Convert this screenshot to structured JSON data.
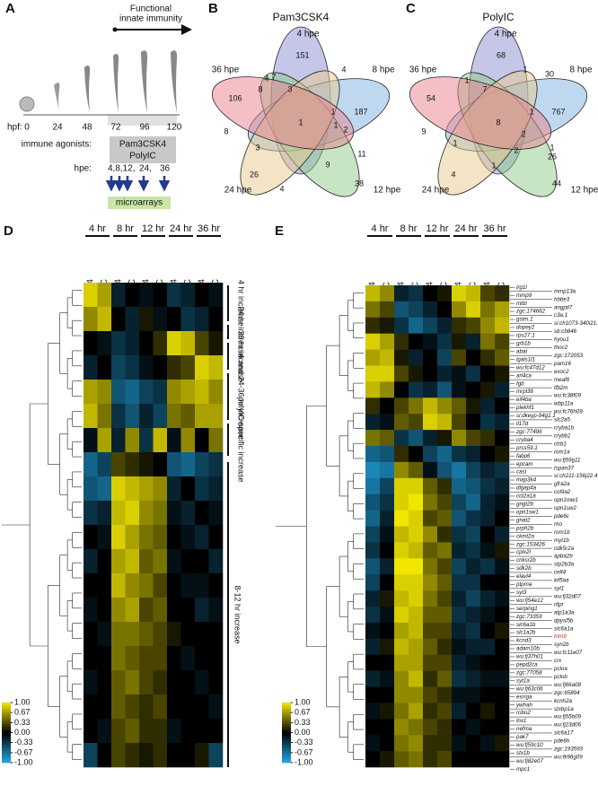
{
  "panel_a": {
    "letter": "A",
    "arrow_label": [
      "Functional",
      "innate immunity"
    ],
    "hpf_label": "hpf:",
    "hpf": [
      0,
      24,
      48,
      72,
      96,
      120
    ],
    "agonists_label": "immune agonists:",
    "agonists": [
      "Pam3CSK4",
      "PolyIC"
    ],
    "hpe_label": "hpe:",
    "hpe": [
      "4,8,12,",
      "24,",
      "36"
    ],
    "assay": "microarrays"
  },
  "panel_b": {
    "letter": "B",
    "title": "Pam3CSK4",
    "sets": [
      "4 hpe",
      "8 hpe",
      "12 hpe",
      "24 hpe",
      "36 hpe"
    ],
    "colors": [
      "#8b8fd2",
      "#7fb2e2",
      "#8fca8c",
      "#eac98e",
      "#e9818e"
    ],
    "counts": [
      151,
      4,
      7,
      4,
      106,
      8,
      3,
      1,
      187,
      1,
      1,
      2,
      8,
      3,
      9,
      11,
      26,
      4,
      38
    ]
  },
  "panel_c": {
    "letter": "C",
    "title": "PolyIC",
    "sets": [
      "4 hpe",
      "8 hpe",
      "12 hpe",
      "24 hpe",
      "36 hpe"
    ],
    "colors": [
      "#8b8fd2",
      "#7fb2e2",
      "#8fca8c",
      "#eac98e",
      "#e9818e"
    ],
    "counts": [
      68,
      1,
      1,
      30,
      54,
      7,
      1,
      767,
      8,
      9,
      1,
      2,
      2,
      1,
      1,
      26,
      4,
      44
    ]
  },
  "panel_d": {
    "letter": "D",
    "times": [
      "4 hr",
      "8 hr",
      "12 hr",
      "24 hr",
      "36 hr"
    ],
    "columns": [
      "Pam3CSK4",
      "PolyIC",
      "Pam3CSK4",
      "PolyIC",
      "Pam3CSK4",
      "PolyIC",
      "Pam3CSK4",
      "PolyIC",
      "Pam3CSK4",
      "PolyIC"
    ],
    "clusters": [
      "4 hr increase",
      "24 hr increase",
      "36 hr increase",
      "4 and 24-36 hr increase",
      "polyIC-specific increase",
      "8-12 hr increase"
    ],
    "scale": [
      {
        "value": -1,
        "label": "-1.00"
      },
      {
        "value": -0.67,
        "label": "-0.67"
      },
      {
        "value": -0.33,
        "label": "-0.33"
      },
      {
        "value": 0,
        "label": "0.00"
      },
      {
        "value": 0.33,
        "label": "0.33"
      },
      {
        "value": 0.67,
        "label": "0.67"
      },
      {
        "value": 1,
        "label": "1.00"
      }
    ],
    "matrix": [
      [
        0.9,
        0.7,
        -0.2,
        0,
        -0.1,
        0,
        -0.3,
        -0.2,
        0,
        -0.1
      ],
      [
        0.6,
        0.8,
        0,
        -0.2,
        0.1,
        -0.1,
        0,
        -0.3,
        -0.2,
        0
      ],
      [
        0,
        -0.1,
        -0.3,
        -0.2,
        0,
        0.2,
        0.9,
        0.8,
        0.3,
        0.1
      ],
      [
        -0.2,
        0,
        -0.4,
        -0.3,
        -0.1,
        0,
        0.2,
        0.3,
        0.9,
        0.8
      ],
      [
        0.7,
        0.6,
        -0.5,
        -0.6,
        -0.4,
        -0.3,
        0.6,
        0.7,
        0.8,
        0.6
      ],
      [
        0.8,
        0.5,
        -0.3,
        -0.5,
        -0.2,
        -0.4,
        0.5,
        0.4,
        0.7,
        0.7
      ],
      [
        -0.1,
        0.7,
        -0.2,
        0.6,
        -0.3,
        0.8,
        -0.1,
        0.6,
        0,
        0.5
      ],
      [
        -0.6,
        -0.4,
        0.3,
        0.2,
        0.1,
        0,
        -0.5,
        -0.6,
        -0.4,
        -0.3
      ],
      [
        -0.5,
        -0.6,
        0.9,
        0.8,
        0.7,
        0.6,
        -0.2,
        0,
        -0.3,
        -0.2
      ],
      [
        -0.3,
        -0.2,
        0.8,
        0.9,
        0.6,
        0.5,
        -0.1,
        -0.2,
        0,
        -0.1
      ],
      [
        0,
        -0.1,
        0.9,
        0.7,
        0.5,
        0.4,
        0,
        -0.1,
        -0.2,
        0
      ],
      [
        -0.2,
        0,
        0.7,
        0.8,
        0.4,
        0.5,
        -0.1,
        0,
        0,
        -0.2
      ],
      [
        0,
        0,
        0.8,
        0.6,
        0.5,
        0.3,
        0,
        -0.1,
        -0.1,
        0
      ],
      [
        -0.1,
        0,
        0.6,
        0.7,
        0.3,
        0.4,
        0,
        0,
        -0.2,
        -0.1
      ],
      [
        0,
        -0.1,
        0.5,
        0.5,
        0.4,
        0.3,
        0.1,
        0,
        0,
        0
      ],
      [
        0,
        0,
        0.5,
        0.4,
        0.3,
        0.3,
        0,
        -0.1,
        0,
        0
      ],
      [
        -0.1,
        0,
        0.4,
        0.5,
        0.3,
        0.2,
        0,
        0,
        -0.1,
        0
      ],
      [
        0,
        0,
        0.4,
        0.3,
        0.2,
        0.3,
        0,
        0,
        0,
        -0.1
      ],
      [
        0,
        -0.1,
        0.3,
        0.4,
        0.2,
        0.2,
        -0.1,
        0,
        0,
        0
      ],
      [
        -0.4,
        0,
        0.3,
        0.2,
        0.1,
        0.2,
        0,
        0,
        0.1,
        -0.4
      ]
    ]
  },
  "panel_e": {
    "letter": "E",
    "times": [
      "4 hr",
      "8 hr",
      "12 hr",
      "24 hr",
      "36 hr"
    ],
    "columns": [
      "Pam3CSK4",
      "PolyIC",
      "Pam3CSK4",
      "PolyIC",
      "Pam3CSK4",
      "PolyIC",
      "Pam3CSK4",
      "PolyIC",
      "Pam3CSK4",
      "PolyIC"
    ],
    "scale": [
      {
        "value": -1,
        "label": "-1.00"
      },
      {
        "value": -0.67,
        "label": "-0.67"
      },
      {
        "value": -0.33,
        "label": "-0.33"
      },
      {
        "value": 0,
        "label": "0.00"
      },
      {
        "value": 0.33,
        "label": "0.33"
      },
      {
        "value": 0.67,
        "label": "0.67"
      },
      {
        "value": 1,
        "label": "1.00"
      }
    ],
    "highlighted": "trim9",
    "highlight_color": "#e01e1e",
    "genes_left": [
      "irg1l",
      "mmp9",
      "mtbl",
      "zgc:174662",
      "gstm.1",
      "dopey2",
      "rps27.1",
      "grb1b",
      "abat",
      "lgals1l1",
      "wu:fc47d12",
      "arl4ca",
      "fgb",
      "mrpl36",
      "eif4ba",
      "plekhf1",
      "si:dkeyp-94g1.1",
      "il17d",
      "zgc:77496",
      "cryba4",
      "prss59.1",
      "fabp6",
      "epcam",
      "cast",
      "map3k4",
      "dlgap4a",
      "col2a1a",
      "gngt2b",
      "opn1sw1",
      "gnat2",
      "prph2b",
      "ckmt2a",
      "zgc:153426",
      "cplx2l",
      "cnksr2b",
      "sdk2b",
      "elavl4",
      "ptpma",
      "syt3",
      "wu:fj54e12",
      "serping1",
      "zgc:73359",
      "slc6a1b",
      "slc1a2b",
      "kcnd3",
      "adam10b",
      "wu:fj37h01",
      "pepd2ca",
      "zgc:77058",
      "syt1a",
      "wu:fj63c06",
      "esrrga",
      "ywhah",
      "robo2",
      "lnx1",
      "nefma",
      "pak7",
      "wu:fj59c10",
      "stx1b",
      "wu:fj82e07",
      "mpc1"
    ],
    "genes_right": [
      "mmp13a",
      "hbbe3",
      "angptl7",
      "c3a.1",
      "si:ch1073-340i21.3",
      "sb:cb846",
      "hyou1",
      "thoc2",
      "zgc:172053",
      "pam16",
      "exoc2",
      "meaf6",
      "tfb2m",
      "wu:fc38f09",
      "wbp11a",
      "wu:fc76h09",
      "slc2a5",
      "cryba1b",
      "crybb1",
      "ctrb1",
      "rom1a",
      "wu:fj59g11",
      "tspan37",
      "si:ch211-156j22.4",
      "gfra2a",
      "col9a2",
      "opn1mw1",
      "opn1sw2",
      "pde6c",
      "rho",
      "rom1b",
      "myt1b",
      "cdk5r2a",
      "apba2b",
      "stp2b3a",
      "celf4",
      "kif5aa",
      "syt1",
      "wu:fj32d07",
      "rtlpr",
      "atp1a3a",
      "dpysl5b",
      "slc6a1a",
      "trim9",
      "syn2b",
      "wu:fc11e07",
      "crx",
      "pcloa",
      "pclob",
      "wu:fj66a08",
      "zgc:65894",
      "kcnh2a",
      "stxbp1a",
      "wu:fj55b09",
      "wu:fj23d06",
      "slc6a17",
      "pde6h",
      "zgc:193593",
      "wu:fk96g09"
    ],
    "matrix": [
      [
        0.8,
        0.6,
        -0.2,
        -0.3,
        0,
        0.1,
        0.9,
        0.8,
        0.3,
        0.2
      ],
      [
        0.5,
        0.3,
        -0.5,
        -0.4,
        -0.2,
        0,
        0.6,
        0.9,
        0.5,
        0.7
      ],
      [
        0.2,
        0.1,
        -0.3,
        -0.6,
        -0.4,
        -0.2,
        0.2,
        0.3,
        0.6,
        0.8
      ],
      [
        0.9,
        0.7,
        0.2,
        0,
        -0.1,
        -0.3,
        0.1,
        -0.2,
        0.5,
        0.3
      ],
      [
        0.7,
        0.8,
        0.1,
        -0.2,
        0,
        -0.4,
        0.3,
        0,
        0.2,
        0.4
      ],
      [
        0.9,
        0.9,
        0.3,
        0.1,
        0,
        -0.2,
        -0.1,
        -0.3,
        0,
        0.1
      ],
      [
        0.8,
        0.6,
        0,
        -0.3,
        -0.2,
        -0.5,
        -0.1,
        0,
        0.1,
        -0.2
      ],
      [
        0.2,
        0,
        0.3,
        0.5,
        0.8,
        0.6,
        0.4,
        0.1,
        -0.2,
        0
      ],
      [
        -0.2,
        -0.1,
        0.4,
        0.3,
        0.9,
        0.8,
        0.3,
        0,
        -0.3,
        -0.2
      ],
      [
        0.5,
        0.4,
        -0.3,
        -0.5,
        -0.2,
        0.1,
        0.6,
        0.3,
        0.2,
        0
      ],
      [
        -0.6,
        -0.5,
        0.2,
        0,
        -0.4,
        -0.6,
        -0.3,
        -0.2,
        0,
        0.1
      ],
      [
        -0.8,
        -0.7,
        0.6,
        0.4,
        -0.1,
        -0.5,
        -0.7,
        -0.4,
        -0.2,
        -0.3
      ],
      [
        -0.7,
        -0.4,
        0.9,
        0.9,
        0.4,
        0.2,
        -0.6,
        -0.5,
        -0.3,
        -0.2
      ],
      [
        -0.5,
        -0.3,
        0.9,
        1,
        0.5,
        0.3,
        -0.4,
        -0.6,
        -0.2,
        -0.1
      ],
      [
        -0.6,
        -0.2,
        1,
        0.9,
        0.3,
        0.4,
        -0.5,
        -0.3,
        -0.2,
        0
      ],
      [
        -0.4,
        -0.1,
        0.8,
        0.9,
        0.6,
        0.2,
        -0.3,
        -0.4,
        0,
        -0.2
      ],
      [
        -0.3,
        0,
        0.9,
        0.8,
        0.4,
        0.5,
        -0.2,
        -0.3,
        -0.1,
        0.1
      ],
      [
        -0.5,
        -0.2,
        1,
        1,
        0.5,
        0.3,
        -0.4,
        -0.2,
        -0.3,
        -0.1
      ],
      [
        -0.4,
        0,
        0.9,
        0.9,
        0.6,
        0.4,
        -0.3,
        -0.3,
        0,
        0
      ],
      [
        -0.2,
        0.1,
        0.8,
        0.9,
        0.5,
        0.3,
        -0.2,
        -0.4,
        -0.2,
        -0.1
      ],
      [
        -0.3,
        -0.1,
        0.9,
        0.8,
        0.4,
        0.4,
        -0.3,
        -0.2,
        -0.1,
        0
      ],
      [
        -0.1,
        0,
        0.7,
        0.8,
        0.3,
        0.3,
        -0.2,
        -0.3,
        0,
        0.1
      ],
      [
        -0.2,
        0.1,
        0.8,
        0.7,
        0.4,
        0.2,
        -0.1,
        -0.2,
        -0.2,
        0
      ],
      [
        0,
        0,
        0.7,
        0.7,
        0.3,
        0.3,
        -0.2,
        -0.1,
        0,
        0
      ],
      [
        -0.2,
        -0.1,
        0.6,
        0.8,
        0.2,
        0.4,
        -0.3,
        -0.2,
        -0.1,
        -0.1
      ],
      [
        0,
        0,
        0.6,
        0.6,
        0.3,
        0.2,
        -0.1,
        -0.1,
        0,
        0
      ],
      [
        -0.1,
        0.1,
        0.5,
        0.7,
        0.2,
        0.3,
        -0.2,
        0,
        0.1,
        0
      ],
      [
        0,
        0,
        0.6,
        0.5,
        0.3,
        0.2,
        0,
        -0.1,
        0,
        0
      ],
      [
        -0.1,
        0,
        0.5,
        0.6,
        0.2,
        0.2,
        -0.1,
        0,
        -0.1,
        0.1
      ],
      [
        0,
        0.1,
        0.4,
        0.5,
        0.2,
        0.3,
        0,
        0,
        0,
        0
      ]
    ]
  }
}
